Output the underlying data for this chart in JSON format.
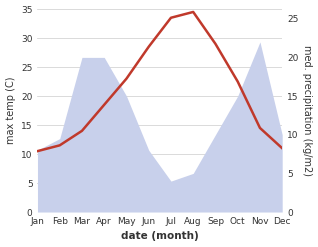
{
  "months": [
    "Jan",
    "Feb",
    "Mar",
    "Apr",
    "May",
    "Jun",
    "Jul",
    "Aug",
    "Sep",
    "Oct",
    "Nov",
    "Dec"
  ],
  "temp": [
    10.5,
    11.5,
    14.0,
    18.5,
    23.0,
    28.5,
    33.5,
    34.5,
    29.0,
    22.5,
    14.5,
    11.0
  ],
  "precip": [
    8.0,
    9.5,
    20.0,
    20.0,
    15.0,
    8.0,
    4.0,
    5.0,
    10.0,
    15.0,
    22.0,
    10.0
  ],
  "temp_color": "#c0392b",
  "precip_fill": "#c8d0eb",
  "temp_ylim": [
    0,
    35
  ],
  "precip_ylim": [
    0,
    26.25
  ],
  "temp_yticks": [
    0,
    5,
    10,
    15,
    20,
    25,
    30,
    35
  ],
  "precip_yticks": [
    0,
    5,
    10,
    15,
    20,
    25
  ],
  "ylabel_left": "max temp (C)",
  "ylabel_right": "med. precipitation (kg/m2)",
  "xlabel": "date (month)",
  "bg_color": "#ffffff",
  "grid_color": "#cccccc",
  "temp_linewidth": 1.8
}
